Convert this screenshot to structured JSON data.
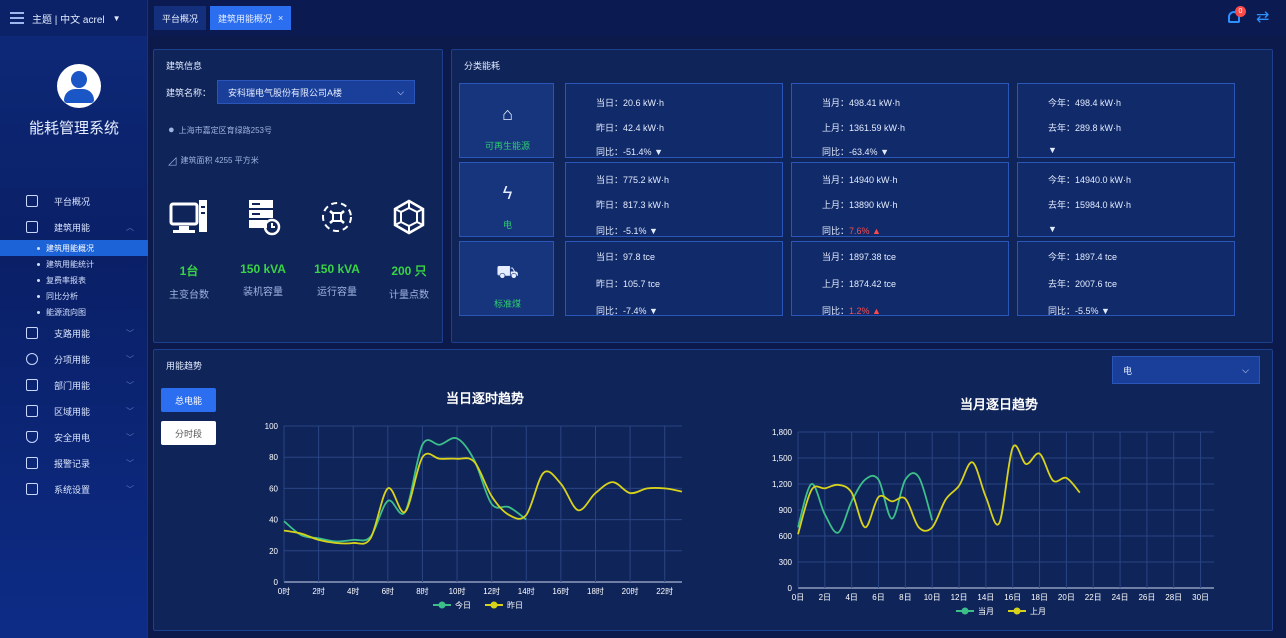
{
  "topbar": {
    "theme_label": "主题 | 中文  acrel",
    "tabs": [
      {
        "label": "平台概况",
        "active": false
      },
      {
        "label": "建筑用能概况",
        "active": true,
        "close": "×"
      }
    ],
    "notification_count": "0"
  },
  "sidebar": {
    "system_title": "能耗管理系统",
    "menu": [
      {
        "label": "平台概况",
        "icon": "monitor-icon"
      },
      {
        "label": "建筑用能",
        "icon": "building-icon",
        "expanded": true,
        "children": [
          "建筑用能概况",
          "建筑用能统计",
          "复费率报表",
          "同比分析",
          "能源流向图"
        ]
      },
      {
        "label": "支路用能",
        "icon": "branch-icon"
      },
      {
        "label": "分项用能",
        "icon": "item-icon"
      },
      {
        "label": "部门用能",
        "icon": "department-icon"
      },
      {
        "label": "区域用能",
        "icon": "area-icon"
      },
      {
        "label": "安全用电",
        "icon": "shield-icon"
      },
      {
        "label": "报警记录",
        "icon": "alarm-record-icon"
      },
      {
        "label": "系统设置",
        "icon": "settings-icon"
      }
    ]
  },
  "building_info": {
    "panel_title": "建筑信息",
    "name_label": "建筑名称：",
    "name_value": "安科瑞电气股份有限公司A楼",
    "address": "上海市嘉定区育绿路253号",
    "area": "建筑面积 4255 平方米",
    "stats": [
      {
        "value": "1台",
        "label": "主变台数",
        "icon": "transformer-icon"
      },
      {
        "value": "150 kVA",
        "label": "装机容量",
        "icon": "server-icon"
      },
      {
        "value": "150 kVA",
        "label": "运行容量",
        "icon": "network-icon"
      },
      {
        "value": "200 只",
        "label": "计量点数",
        "icon": "meter-icon"
      }
    ]
  },
  "category": {
    "panel_title": "分类能耗",
    "rows": [
      {
        "name": "可再生能源",
        "icon": "renewable-icon",
        "day": {
          "today": "当日：20.6 kW·h",
          "yesterday": "昨日：42.4 kW·h",
          "yoy_label": "同比：",
          "yoy": "-51.4%",
          "dir": "down"
        },
        "month": {
          "this": "当月：498.41 kW·h",
          "last": "上月：1361.59 kW·h",
          "yoy_label": "同比：",
          "yoy": "-63.4%",
          "dir": "down"
        },
        "year": {
          "this": "今年：498.4 kW·h",
          "last": "去年：289.8 kW·h",
          "yoy_label": "",
          "yoy": "",
          "dir": "down"
        }
      },
      {
        "name": "电",
        "icon": "lightning-icon",
        "day": {
          "today": "当日：775.2 kW·h",
          "yesterday": "昨日：817.3 kW·h",
          "yoy_label": "同比：",
          "yoy": "-5.1%",
          "dir": "down"
        },
        "month": {
          "this": "当月：14940 kW·h",
          "last": "上月：13890 kW·h",
          "yoy_label": "同比：",
          "yoy": "7.6%",
          "dir": "up"
        },
        "year": {
          "this": "今年：14940.0 kW·h",
          "last": "去年：15984.0 kW·h",
          "yoy_label": "",
          "yoy": "",
          "dir": "down"
        }
      },
      {
        "name": "标准煤",
        "icon": "coal-cart-icon",
        "day": {
          "today": "当日：97.8 tce",
          "yesterday": "昨日：105.7 tce",
          "yoy_label": "同比：",
          "yoy": "-7.4%",
          "dir": "down"
        },
        "month": {
          "this": "当月：1897.38 tce",
          "last": "上月：1874.42 tce",
          "yoy_label": "同比：",
          "yoy": "1.2%",
          "dir": "up"
        },
        "year": {
          "this": "今年：1897.4 tce",
          "last": "去年：2007.6 tce",
          "yoy_label": "同比：",
          "yoy": "-5.5%",
          "dir": "down"
        }
      }
    ]
  },
  "trend": {
    "panel_title": "用能趋势",
    "energy_select": "电",
    "btn_total": "总电能",
    "btn_period": "分时段",
    "colors": {
      "series_a": "#3dbf8a",
      "series_b": "#d8d21a"
    }
  },
  "chart_data": [
    {
      "type": "line",
      "title": "当日逐时趋势",
      "x": [
        "0时",
        "1时",
        "2时",
        "3时",
        "4时",
        "5时",
        "6时",
        "7时",
        "8时",
        "9时",
        "10时",
        "11时",
        "12时",
        "13时",
        "14时",
        "15时",
        "16时",
        "17时",
        "18时",
        "19时",
        "20时",
        "21时",
        "22时",
        "23时"
      ],
      "tick_labels": [
        "0时",
        "2时",
        "4时",
        "6时",
        "8时",
        "10时",
        "12时",
        "14时",
        "16时",
        "18时",
        "20时",
        "22时"
      ],
      "ylim": [
        0,
        100
      ],
      "yticks": [
        0,
        20,
        40,
        60,
        80,
        100
      ],
      "series": [
        {
          "name": "今日",
          "values": [
            39,
            30,
            28,
            26,
            27,
            29,
            52,
            45,
            88,
            88,
            92,
            78,
            50,
            48,
            40,
            null,
            null,
            null,
            null,
            null,
            null,
            null,
            null,
            null
          ]
        },
        {
          "name": "昨日",
          "values": [
            33,
            31,
            27,
            25,
            25,
            28,
            60,
            45,
            80,
            79,
            79,
            77,
            55,
            43,
            43,
            70,
            63,
            46,
            57,
            64,
            57,
            60,
            60,
            58
          ]
        }
      ]
    },
    {
      "type": "line",
      "title": "当月逐日趋势",
      "x": [
        "0日",
        "1日",
        "2日",
        "3日",
        "4日",
        "5日",
        "6日",
        "7日",
        "8日",
        "9日",
        "10日",
        "11日",
        "12日",
        "13日",
        "14日",
        "15日",
        "16日",
        "17日",
        "18日",
        "19日",
        "20日",
        "21日",
        "22日",
        "23日",
        "24日",
        "25日",
        "26日",
        "27日",
        "28日",
        "29日",
        "30日",
        "31日"
      ],
      "tick_labels": [
        "0日",
        "2日",
        "4日",
        "6日",
        "8日",
        "10日",
        "12日",
        "14日",
        "16日",
        "18日",
        "20日",
        "22日",
        "24日",
        "26日",
        "28日",
        "30日"
      ],
      "ylim": [
        0,
        1800
      ],
      "yticks": [
        "0",
        "300",
        "600",
        "900",
        "1,200",
        "1,500",
        "1,800"
      ],
      "series": [
        {
          "name": "当月",
          "values": [
            700,
            1200,
            850,
            640,
            1000,
            1250,
            1250,
            800,
            1250,
            1280,
            780,
            null,
            null,
            null,
            null,
            null,
            null,
            null,
            null,
            null,
            null,
            null,
            null,
            null,
            null,
            null,
            null,
            null,
            null,
            null,
            null,
            null
          ]
        },
        {
          "name": "上月",
          "values": [
            620,
            1130,
            1150,
            1190,
            1100,
            700,
            1050,
            1000,
            1030,
            700,
            700,
            1020,
            1180,
            1450,
            1050,
            750,
            1620,
            1430,
            1550,
            1240,
            1270,
            1100,
            null,
            null,
            null,
            null,
            null,
            null,
            null,
            null,
            null,
            null
          ]
        }
      ]
    }
  ]
}
